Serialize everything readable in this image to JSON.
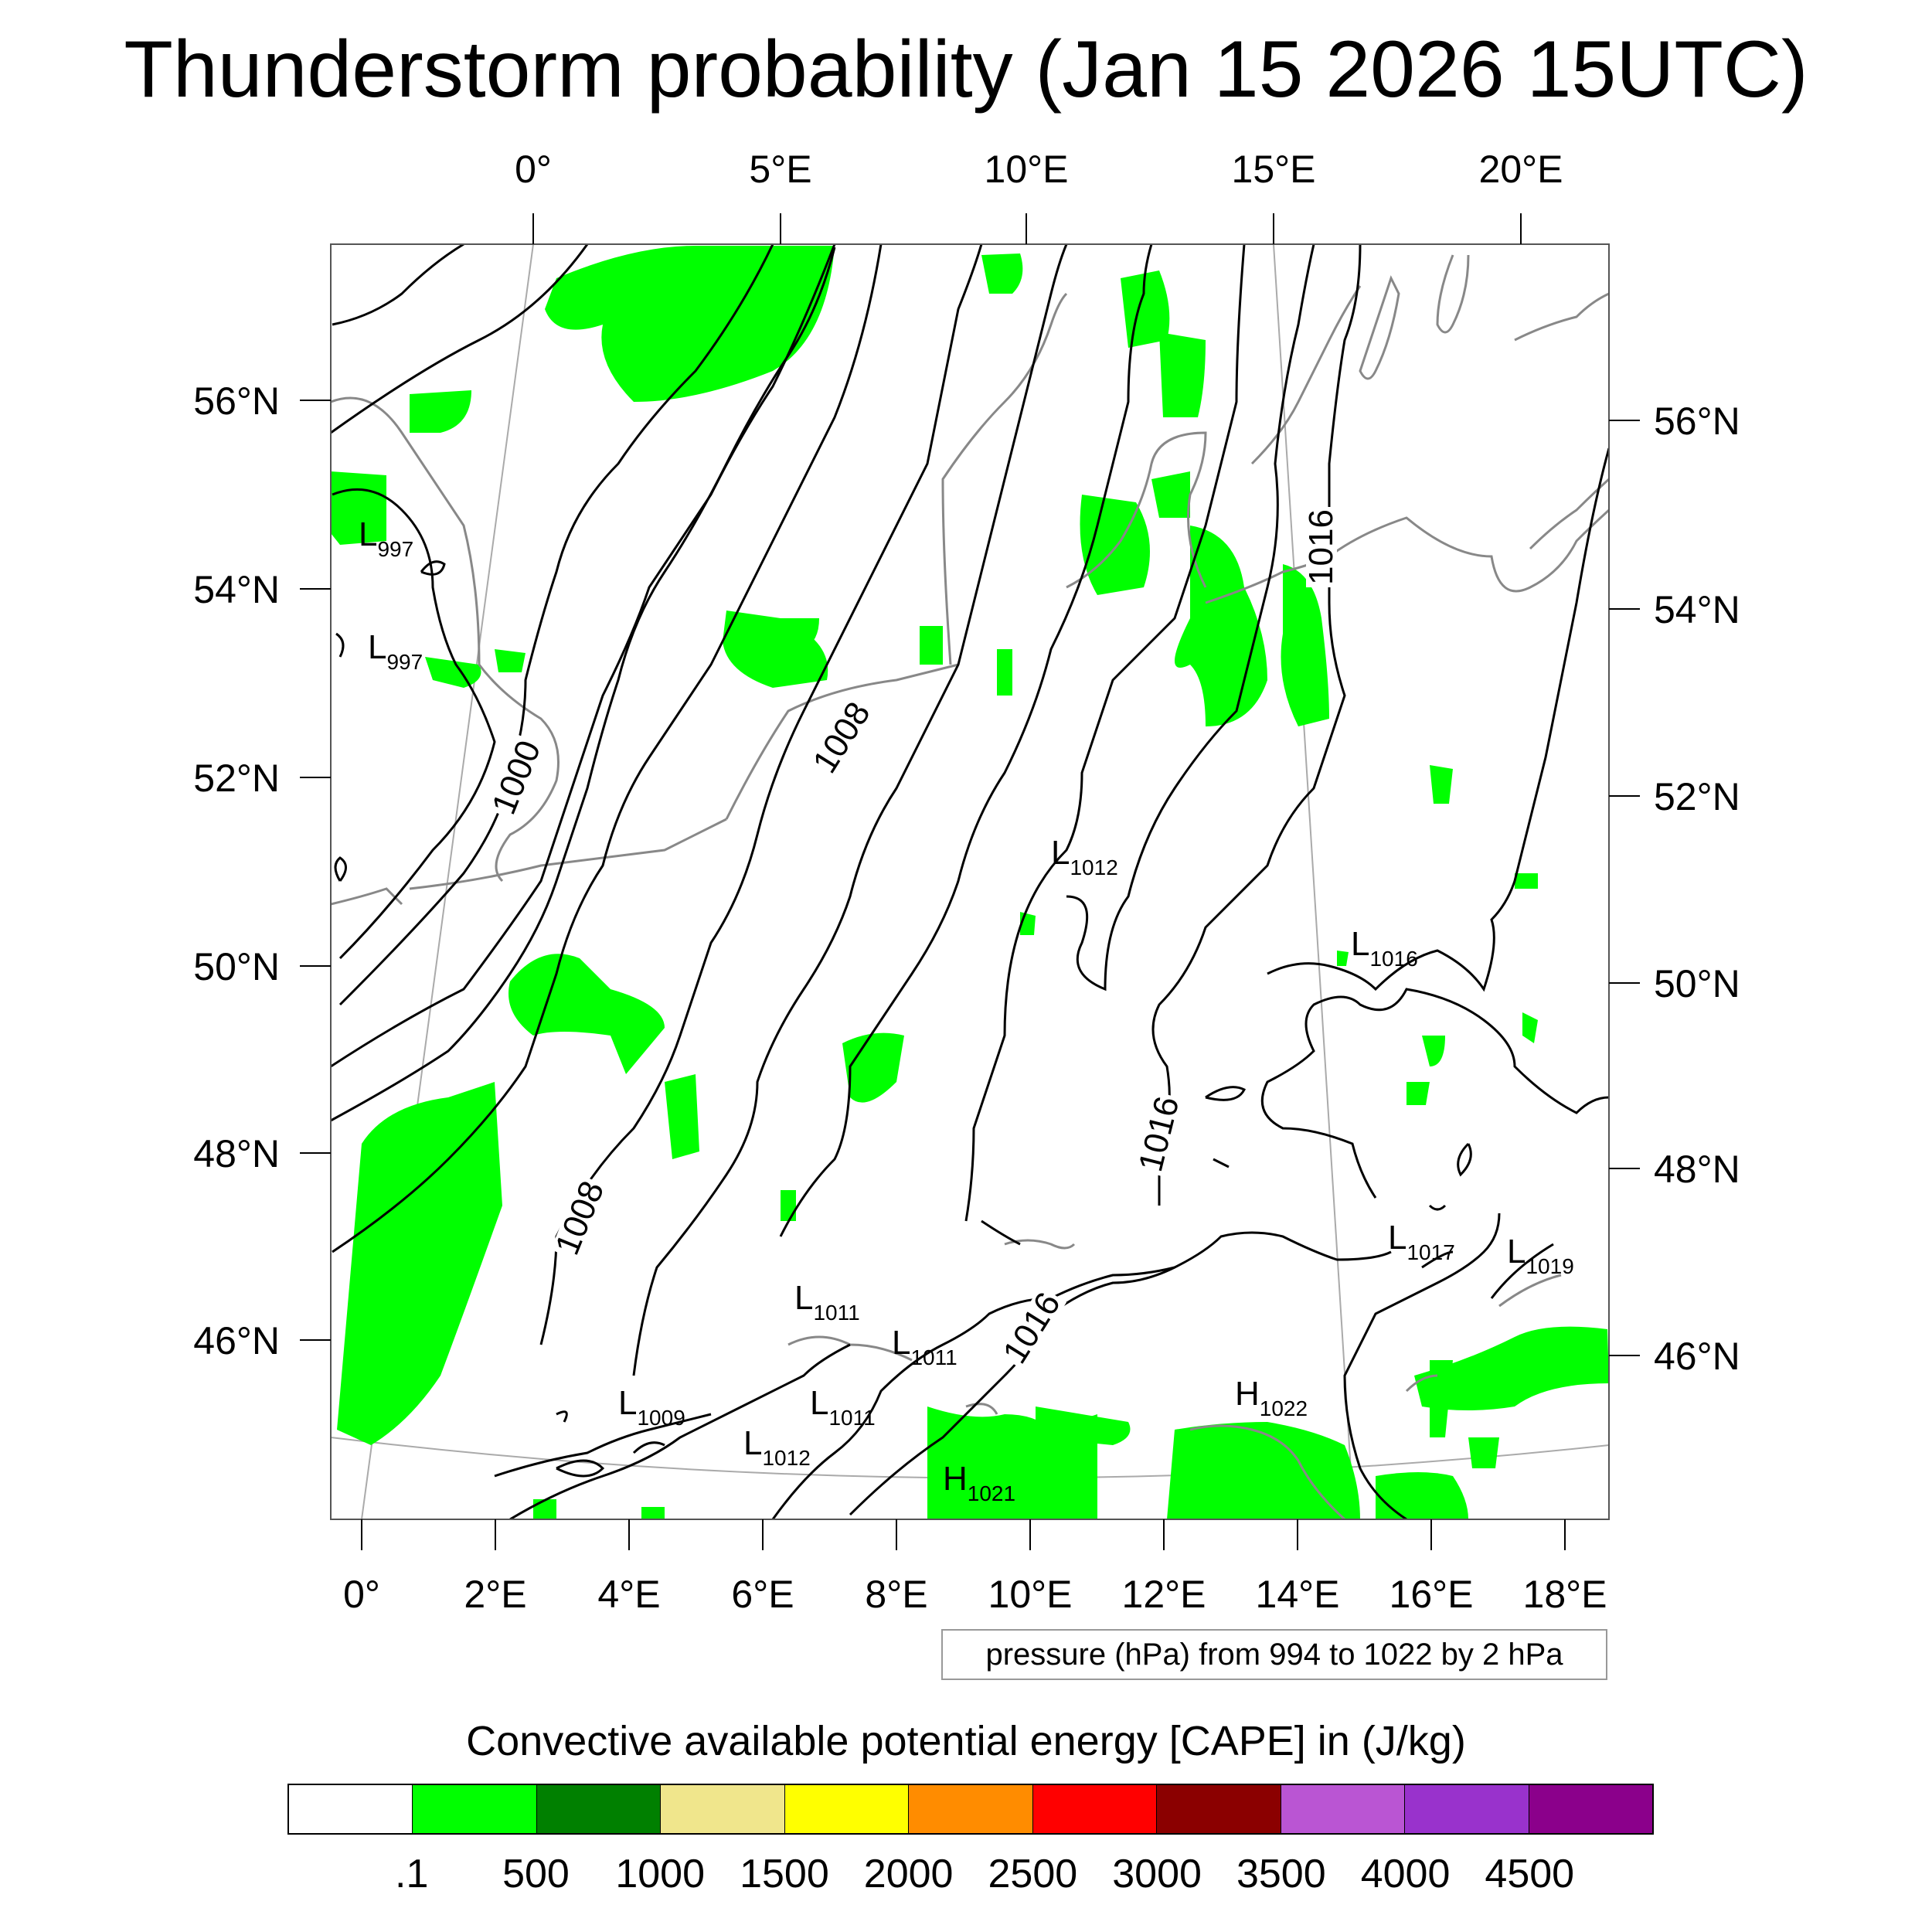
{
  "title": "Thunderstorm probability (Jan 15 2026 15UTC)",
  "top_lon_labels": [
    "0°",
    "5°E",
    "10°E",
    "15°E",
    "20°E"
  ],
  "bottom_lon_labels": [
    "0°",
    "2°E",
    "4°E",
    "6°E",
    "8°E",
    "10°E",
    "12°E",
    "14°E",
    "16°E",
    "18°E"
  ],
  "left_lat_labels": [
    "56°N",
    "54°N",
    "52°N",
    "50°N",
    "48°N",
    "46°N"
  ],
  "right_lat_labels": [
    "56°N",
    "54°N",
    "52°N",
    "50°N",
    "48°N",
    "46°N"
  ],
  "contour_labels": [
    "1000",
    "1008",
    "1008",
    "1016",
    "1016",
    "1016"
  ],
  "pressure_centers": [
    {
      "letter": "L",
      "value": "997"
    },
    {
      "letter": "L",
      "value": "997"
    },
    {
      "letter": "L",
      "value": "1012"
    },
    {
      "letter": "L",
      "value": "1016"
    },
    {
      "letter": "L",
      "value": "1017"
    },
    {
      "letter": "L",
      "value": "1019"
    },
    {
      "letter": "L",
      "value": "1011"
    },
    {
      "letter": "L",
      "value": "1011"
    },
    {
      "letter": "L",
      "value": "1011"
    },
    {
      "letter": "L",
      "value": "1009"
    },
    {
      "letter": "L",
      "value": "1012"
    },
    {
      "letter": "H",
      "value": "1022"
    },
    {
      "letter": "H",
      "value": "1021"
    }
  ],
  "pressure_note": "pressure (hPa) from 994 to 1022 by 2 hPa",
  "colorbar": {
    "title": "Convective available potential energy [CAPE] in (J/kg)",
    "colors": [
      "#ffffff",
      "#00ff00",
      "#008000",
      "#f0e68c",
      "#ffff00",
      "#ff8c00",
      "#ff0000",
      "#8b0000",
      "#ba55d3",
      "#9932cc",
      "#8b008b"
    ],
    "labels": [
      ".1",
      "500",
      "1000",
      "1500",
      "2000",
      "2500",
      "3000",
      "3500",
      "4000",
      "4500"
    ]
  },
  "colors": {
    "cape_fill": "#00ff00",
    "coastline": "#888888",
    "isobar": "#000000",
    "graticule": "#aaaaaa"
  }
}
